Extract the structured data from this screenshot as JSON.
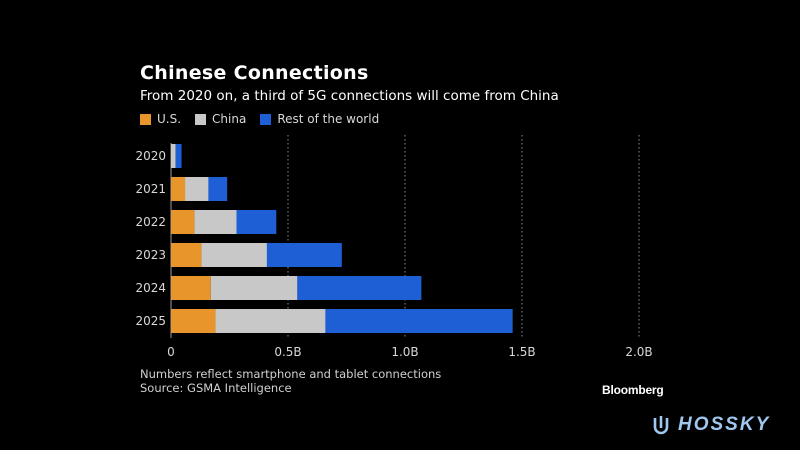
{
  "header": {
    "title": "Chinese Connections",
    "subtitle": "From 2020 on, a third of 5G connections will come from China"
  },
  "legend": [
    {
      "label": "U.S.",
      "color": "#e8962b"
    },
    {
      "label": "China",
      "color": "#c8c8c8"
    },
    {
      "label": "Rest of the world",
      "color": "#1f5fd6"
    }
  ],
  "footer": {
    "note_line1": "Numbers reflect smartphone and tablet connections",
    "note_line2": "Source: GSMA Intelligence",
    "brand": "Bloomberg"
  },
  "watermark": {
    "text": "HOSSKY"
  },
  "chart_data": {
    "type": "bar",
    "orientation": "horizontal",
    "stacked": true,
    "categories": [
      "2020",
      "2021",
      "2022",
      "2023",
      "2024",
      "2025"
    ],
    "series": [
      {
        "name": "U.S.",
        "color": "#e8962b",
        "values": [
          0.0,
          0.06,
          0.1,
          0.13,
          0.17,
          0.19
        ]
      },
      {
        "name": "China",
        "color": "#c8c8c8",
        "values": [
          0.02,
          0.1,
          0.18,
          0.28,
          0.37,
          0.47
        ]
      },
      {
        "name": "Rest of the world",
        "color": "#1f5fd6",
        "values": [
          0.025,
          0.08,
          0.17,
          0.32,
          0.53,
          0.8
        ]
      }
    ],
    "xlim": [
      0,
      2.0
    ],
    "xticks": [
      {
        "value": 0,
        "label": "0"
      },
      {
        "value": 0.5,
        "label": "0.5B"
      },
      {
        "value": 1.0,
        "label": "1.0B"
      },
      {
        "value": 1.5,
        "label": "1.5B"
      },
      {
        "value": 2.0,
        "label": "2.0B"
      }
    ],
    "grid": "vertical-dotted",
    "legend_position": "top-left"
  }
}
